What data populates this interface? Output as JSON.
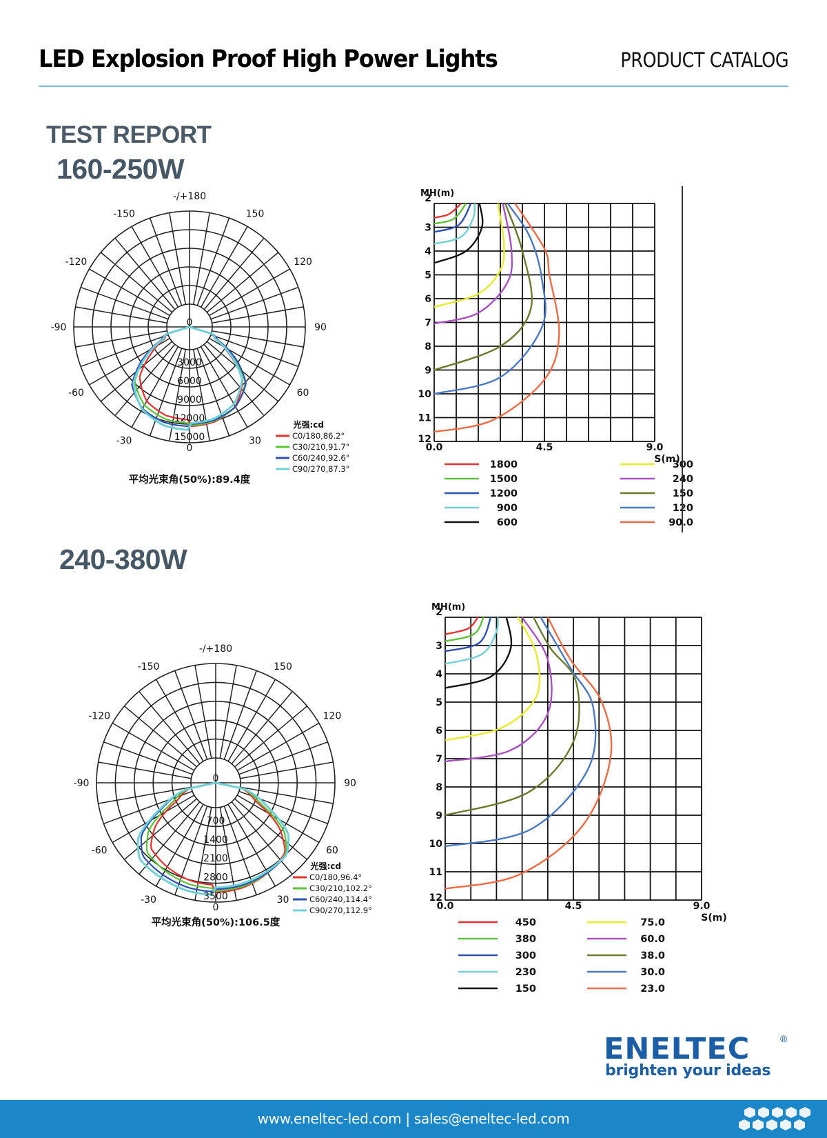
{
  "header": {
    "title": "LED Explosion Proof High Power Lights",
    "catalog": "PRODUCT CATALOG"
  },
  "section_title": "TEST REPORT",
  "variants": [
    {
      "label": "160-250W"
    },
    {
      "label": "240-380W"
    }
  ],
  "logo": {
    "word": "ENELTEC",
    "registered": "®",
    "tagline": "brighten your ideas",
    "color": "#1b5ea5"
  },
  "footer": {
    "contact": "www.eneltec-led.com | sales@eneltec-led.com",
    "background": "#1b86c8"
  },
  "chart_data": [
    {
      "type": "polar",
      "title": "160-250W luminous intensity distribution",
      "unit_label": "光强:cd",
      "angle_labels": [
        "-/+180",
        "-150",
        "150",
        "-120",
        "120",
        "-90",
        "90",
        "-60",
        "60",
        "-30",
        "30",
        "0"
      ],
      "radial_ticks": [
        "0",
        "3000",
        "6000",
        "9000",
        "12000",
        "15000"
      ],
      "rmax": 15000,
      "beam_angle_label": "平均光束角(50%):89.4度",
      "series": [
        {
          "name": "C0/180,86.2°",
          "color": "#e8302f",
          "intensity_profile": [
            [
              0,
              12000
            ],
            [
              15,
              11800
            ],
            [
              30,
              10800
            ],
            [
              45,
              8200
            ],
            [
              55,
              4200
            ],
            [
              65,
              800
            ],
            [
              75,
              0
            ]
          ]
        },
        {
          "name": "C30/210,91.7°",
          "color": "#5cc23a",
          "intensity_profile": [
            [
              0,
              12100
            ],
            [
              15,
              11900
            ],
            [
              30,
              11100
            ],
            [
              45,
              9000
            ],
            [
              55,
              5200
            ],
            [
              65,
              1200
            ],
            [
              75,
              0
            ]
          ]
        },
        {
          "name": "C60/240,92.6°",
          "color": "#2b4fb3",
          "intensity_profile": [
            [
              0,
              12100
            ],
            [
              15,
              12000
            ],
            [
              30,
              11300
            ],
            [
              45,
              9300
            ],
            [
              55,
              5600
            ],
            [
              65,
              1400
            ],
            [
              75,
              0
            ]
          ]
        },
        {
          "name": "C90/270,87.3°",
          "color": "#6fd0d6",
          "intensity_profile": [
            [
              0,
              12200
            ],
            [
              15,
              12000
            ],
            [
              30,
              11000
            ],
            [
              45,
              8600
            ],
            [
              55,
              4800
            ],
            [
              65,
              1000
            ],
            [
              75,
              0
            ]
          ]
        }
      ]
    },
    {
      "type": "line",
      "title": "160-250W isolux diagram",
      "xlabel": "S(m)",
      "ylabel": "MH(m)",
      "x_ticks": [
        "0.0",
        "4.5",
        "9.0"
      ],
      "y_ticks": [
        "2",
        "3",
        "4",
        "5",
        "6",
        "7",
        "8",
        "9",
        "10",
        "11",
        "12"
      ],
      "xlim": [
        0,
        9
      ],
      "ylim": [
        2,
        12
      ],
      "grid": true,
      "series": [
        {
          "name": "1800",
          "color": "#e8302f",
          "points": [
            [
              0,
              2.6
            ],
            [
              0.6,
              2.45
            ],
            [
              1.1,
              2
            ]
          ]
        },
        {
          "name": "1500",
          "color": "#5cc23a",
          "points": [
            [
              0,
              2.85
            ],
            [
              0.8,
              2.65
            ],
            [
              1.3,
              2
            ]
          ]
        },
        {
          "name": "1200",
          "color": "#2b4fb3",
          "points": [
            [
              0,
              3.2
            ],
            [
              1.0,
              2.9
            ],
            [
              1.5,
              2
            ]
          ]
        },
        {
          "name": "900",
          "color": "#6fd0d6",
          "points": [
            [
              0,
              3.7
            ],
            [
              1.1,
              3.4
            ],
            [
              1.6,
              2.6
            ],
            [
              1.65,
              2
            ]
          ]
        },
        {
          "name": "600",
          "color": "#111111",
          "points": [
            [
              0,
              4.5
            ],
            [
              1.3,
              4
            ],
            [
              1.95,
              3
            ],
            [
              1.85,
              2
            ]
          ]
        },
        {
          "name": "300",
          "color": "#e6ec2c",
          "points": [
            [
              0,
              6.35
            ],
            [
              1.8,
              5.8
            ],
            [
              2.7,
              4.8
            ],
            [
              2.85,
              3.7
            ],
            [
              2.6,
              2
            ]
          ]
        },
        {
          "name": "240",
          "color": "#a84fc4",
          "points": [
            [
              0,
              7.05
            ],
            [
              1.8,
              6.6
            ],
            [
              3.0,
              5.3
            ],
            [
              3.15,
              3.9
            ],
            [
              2.8,
              2
            ]
          ]
        },
        {
          "name": "150",
          "color": "#6a7a2c",
          "points": [
            [
              0,
              9
            ],
            [
              2.7,
              8
            ],
            [
              3.95,
              6.4
            ],
            [
              3.6,
              4
            ],
            [
              2.9,
              2
            ]
          ]
        },
        {
          "name": "120",
          "color": "#4a78c6",
          "points": [
            [
              0,
              10
            ],
            [
              2.7,
              9.3
            ],
            [
              4.4,
              7.2
            ],
            [
              4.4,
              5.2
            ],
            [
              3.9,
              3.4
            ],
            [
              3.0,
              2
            ]
          ]
        },
        {
          "name": "90.0",
          "color": "#f06a44",
          "points": [
            [
              0,
              11.6
            ],
            [
              2.4,
              11.1
            ],
            [
              4.5,
              9.4
            ],
            [
              5.1,
              7.5
            ],
            [
              4.7,
              5
            ],
            [
              4.5,
              3.9
            ],
            [
              3.3,
              2
            ]
          ]
        }
      ],
      "legend": [
        "1800",
        "1500",
        "1200",
        "900",
        "600",
        "300",
        "240",
        "150",
        "120",
        "90.0"
      ]
    },
    {
      "type": "polar",
      "title": "240-380W luminous intensity distribution",
      "unit_label": "光强:cd",
      "angle_labels": [
        "-/+180",
        "-150",
        "150",
        "-120",
        "120",
        "-90",
        "90",
        "-60",
        "60",
        "-30",
        "30",
        "0"
      ],
      "radial_ticks": [
        "0",
        "700",
        "1400",
        "2100",
        "2800",
        "3500"
      ],
      "rmax": 3500,
      "beam_angle_label": "平均光束角(50%):106.5度",
      "series": [
        {
          "name": "C0/180,96.4°",
          "color": "#e8302f",
          "intensity_profile": [
            [
              0,
              3050
            ],
            [
              15,
              3000
            ],
            [
              30,
              2850
            ],
            [
              45,
              2650
            ],
            [
              55,
              1900
            ],
            [
              65,
              700
            ],
            [
              80,
              0
            ]
          ]
        },
        {
          "name": "C30/210,102.2°",
          "color": "#5cc23a",
          "intensity_profile": [
            [
              0,
              3050
            ],
            [
              15,
              3020
            ],
            [
              30,
              2900
            ],
            [
              45,
              2750
            ],
            [
              55,
              2150
            ],
            [
              65,
              900
            ],
            [
              80,
              0
            ]
          ]
        },
        {
          "name": "C60/240,114.4°",
          "color": "#2b4fb3",
          "intensity_profile": [
            [
              0,
              3050
            ],
            [
              15,
              3030
            ],
            [
              30,
              2950
            ],
            [
              45,
              2850
            ],
            [
              55,
              2400
            ],
            [
              65,
              1200
            ],
            [
              80,
              0
            ]
          ]
        },
        {
          "name": "C90/270,112.9°",
          "color": "#6fd0d6",
          "intensity_profile": [
            [
              0,
              3050
            ],
            [
              15,
              3030
            ],
            [
              30,
              2960
            ],
            [
              45,
              2900
            ],
            [
              55,
              2450
            ],
            [
              65,
              1250
            ],
            [
              80,
              0
            ]
          ]
        }
      ]
    },
    {
      "type": "line",
      "title": "240-380W isolux diagram",
      "xlabel": "S(m)",
      "ylabel": "MH(m)",
      "x_ticks": [
        "0.0",
        "4.5",
        "9.0"
      ],
      "y_ticks": [
        "2",
        "3",
        "4",
        "5",
        "6",
        "7",
        "8",
        "9",
        "10",
        "11",
        "12"
      ],
      "xlim": [
        0,
        9
      ],
      "ylim": [
        2,
        12
      ],
      "grid": true,
      "series": [
        {
          "name": "450",
          "color": "#e8302f",
          "points": [
            [
              0,
              2.6
            ],
            [
              0.8,
              2.4
            ],
            [
              1.15,
              2
            ]
          ]
        },
        {
          "name": "380",
          "color": "#5cc23a",
          "points": [
            [
              0,
              2.85
            ],
            [
              1.0,
              2.6
            ],
            [
              1.35,
              2
            ]
          ]
        },
        {
          "name": "300",
          "color": "#2b4fb3",
          "points": [
            [
              0,
              3.2
            ],
            [
              1.2,
              2.9
            ],
            [
              1.6,
              2
            ]
          ]
        },
        {
          "name": "230",
          "color": "#6fd0d6",
          "points": [
            [
              0,
              3.65
            ],
            [
              1.3,
              3.3
            ],
            [
              1.8,
              2.5
            ],
            [
              1.85,
              2
            ]
          ]
        },
        {
          "name": "150",
          "color": "#111111",
          "points": [
            [
              0,
              4.5
            ],
            [
              1.6,
              4.1
            ],
            [
              2.3,
              3.1
            ],
            [
              2.15,
              2
            ]
          ]
        },
        {
          "name": "75.0",
          "color": "#e6ec2c",
          "points": [
            [
              0,
              6.35
            ],
            [
              2.0,
              5.9
            ],
            [
              3.2,
              4.8
            ],
            [
              3.2,
              3.3
            ],
            [
              2.55,
              2
            ]
          ]
        },
        {
          "name": "60.0",
          "color": "#a84fc4",
          "points": [
            [
              0,
              7.1
            ],
            [
              2.3,
              6.7
            ],
            [
              3.6,
              5.4
            ],
            [
              3.6,
              3.5
            ],
            [
              2.7,
              2
            ]
          ]
        },
        {
          "name": "38.0",
          "color": "#6a7a2c",
          "points": [
            [
              0,
              9
            ],
            [
              2.9,
              8.2
            ],
            [
              4.5,
              6.4
            ],
            [
              4.6,
              4.3
            ],
            [
              3.7,
              3.1
            ],
            [
              3.1,
              2
            ]
          ]
        },
        {
          "name": "30.0",
          "color": "#4a78c6",
          "points": [
            [
              0,
              10.1
            ],
            [
              3.0,
              9.5
            ],
            [
              5.0,
              7.4
            ],
            [
              5.2,
              5.2
            ],
            [
              4.4,
              3.8
            ],
            [
              3.35,
              2
            ]
          ]
        },
        {
          "name": "23.0",
          "color": "#f06a44",
          "points": [
            [
              0,
              11.6
            ],
            [
              2.6,
              11.1
            ],
            [
              4.8,
              9.4
            ],
            [
              5.8,
              7.0
            ],
            [
              5.5,
              5.0
            ],
            [
              4.4,
              3.5
            ],
            [
              3.6,
              2
            ]
          ]
        }
      ],
      "legend": [
        "450",
        "380",
        "300",
        "230",
        "150",
        "75.0",
        "60.0",
        "38.0",
        "30.0",
        "23.0"
      ]
    }
  ]
}
